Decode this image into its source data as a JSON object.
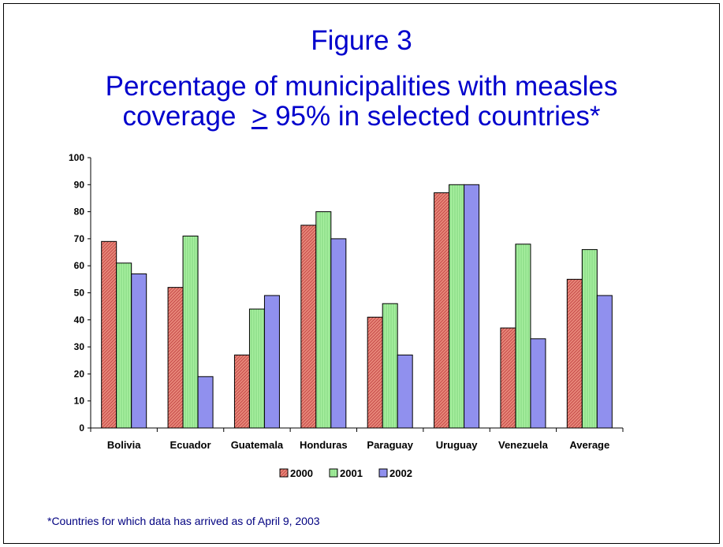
{
  "title": {
    "line1": "Figure 3",
    "line2": "Percentage of municipalities with measles",
    "line3_pre": "coverage  ",
    "line3_sym": ">",
    "line3_post": " 95% in selected countries*"
  },
  "footnote": "*Countries for which data has arrived as of April 9, 2003",
  "chart_data": {
    "type": "bar",
    "categories": [
      "Bolivia",
      "Ecuador",
      "Guatemala",
      "Honduras",
      "Paraguay",
      "Uruguay",
      "Venezuela",
      "Average"
    ],
    "series": [
      {
        "name": "2000",
        "values": [
          69,
          52,
          27,
          75,
          41,
          87,
          37,
          55
        ],
        "color": "#e8887a",
        "pattern": "diagonal-hatch"
      },
      {
        "name": "2001",
        "values": [
          61,
          71,
          44,
          80,
          46,
          90,
          68,
          66
        ],
        "color": "#a8f0a0",
        "pattern": "vertical-lines"
      },
      {
        "name": "2002",
        "values": [
          57,
          19,
          49,
          70,
          27,
          90,
          33,
          49
        ],
        "color": "#9090ee",
        "pattern": "solid"
      }
    ],
    "yticks": [
      "0",
      "10",
      "20",
      "30",
      "40",
      "50",
      "60",
      "70",
      "80",
      "90",
      "100"
    ],
    "ylim": [
      0,
      100
    ],
    "grid": false,
    "legend_position": "bottom"
  }
}
